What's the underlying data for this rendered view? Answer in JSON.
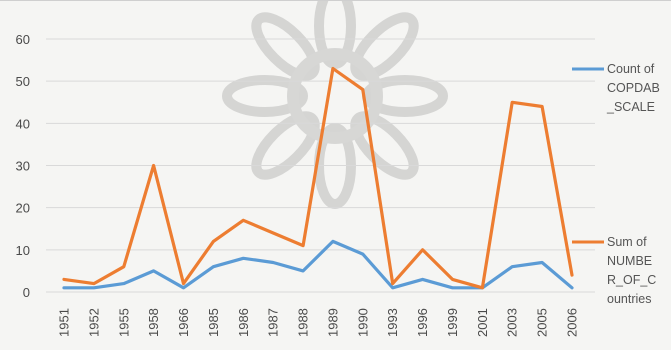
{
  "chart_data": {
    "type": "line",
    "title": "",
    "xlabel": "",
    "ylabel": "",
    "categories": [
      "1951",
      "1952",
      "1955",
      "1958",
      "1966",
      "1985",
      "1986",
      "1987",
      "1988",
      "1989",
      "1990",
      "1993",
      "1996",
      "1999",
      "2001",
      "2003",
      "2005",
      "2006"
    ],
    "ylim": [
      0,
      60
    ],
    "yticks": [
      "0",
      "10",
      "20",
      "30",
      "40",
      "50",
      "60"
    ],
    "grid": true,
    "legend_position": "right",
    "series": [
      {
        "name": "Count of COPDAB_SCALE",
        "legend_lines": [
          "Count of",
          "COPDAB",
          "_SCALE"
        ],
        "color": "#5b9bd5",
        "values": [
          1,
          1,
          2,
          5,
          1,
          6,
          8,
          7,
          5,
          12,
          9,
          1,
          3,
          1,
          1,
          6,
          7,
          1
        ]
      },
      {
        "name": "Sum of NUMBER_OF_Countries",
        "legend_lines": [
          "Sum of",
          "NUMBE",
          "R_OF_C",
          "ountries"
        ],
        "color": "#ed7d31",
        "values": [
          3,
          2,
          6,
          30,
          2,
          12,
          17,
          14,
          11,
          53,
          48,
          2,
          10,
          3,
          1,
          45,
          44,
          4
        ]
      }
    ]
  }
}
